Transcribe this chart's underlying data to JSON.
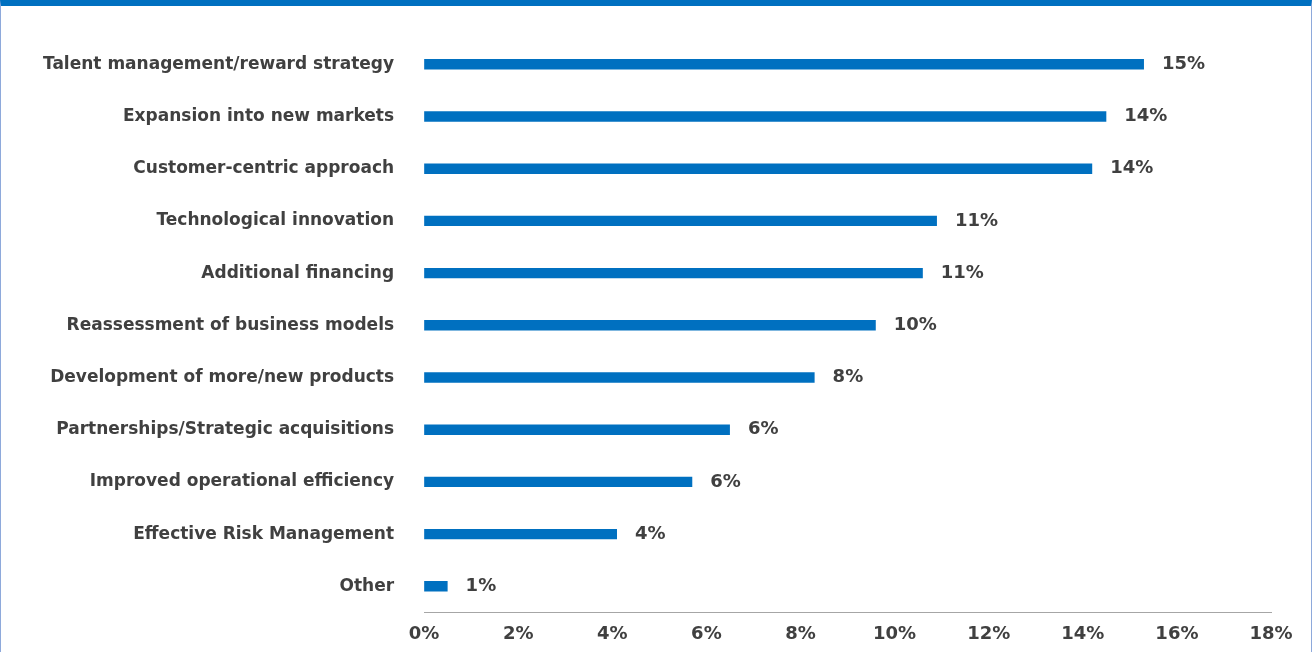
{
  "chart_data": {
    "type": "bar",
    "orientation": "horizontal",
    "categories": [
      "Talent management/reward strategy",
      "Expansion into new markets",
      "Customer-centric approach",
      "Technological innovation",
      "Additional financing",
      "Reassessment of business models",
      "Development of more/new products",
      "Partnerships/Strategic acquisitions",
      "Improved operational efficiency",
      "Effective Risk Management",
      "Other"
    ],
    "values": [
      15.3,
      14.5,
      14.2,
      10.9,
      10.6,
      9.6,
      8.3,
      6.5,
      5.7,
      4.1,
      0.5
    ],
    "value_labels": [
      "15%",
      "14%",
      "14%",
      "11%",
      "11%",
      "10%",
      "8%",
      "6%",
      "6%",
      "4%",
      "1%"
    ],
    "color": "#0070c0",
    "xlim": [
      0,
      18
    ],
    "xticks": [
      {
        "value": 0,
        "label": "0%"
      },
      {
        "value": 2,
        "label": "2%"
      },
      {
        "value": 4,
        "label": "4%"
      },
      {
        "value": 6,
        "label": "6%"
      },
      {
        "value": 8,
        "label": "8%"
      },
      {
        "value": 10,
        "label": "10%"
      },
      {
        "value": 12,
        "label": "12%"
      },
      {
        "value": 14,
        "label": "14%"
      },
      {
        "value": 16,
        "label": "16%"
      },
      {
        "value": 18,
        "label": "18%"
      }
    ],
    "grid": false,
    "legend": false
  }
}
